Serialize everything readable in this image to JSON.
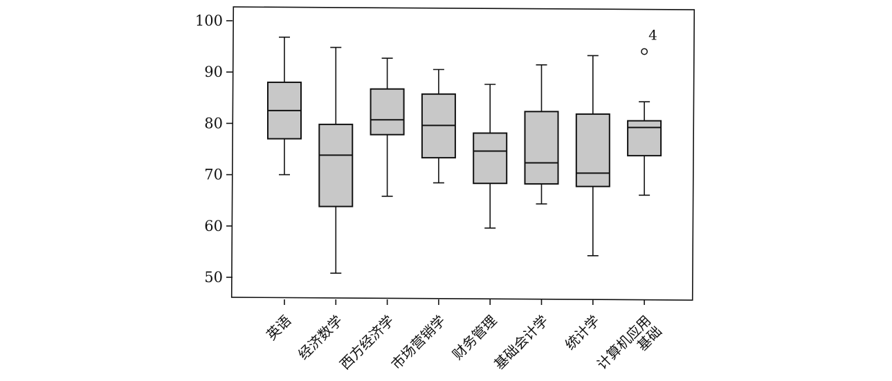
{
  "chart_data": {
    "type": "boxplot",
    "ylim": [
      47,
      102.5
    ],
    "yticks": [
      50,
      60,
      70,
      80,
      90,
      100
    ],
    "grid": false,
    "categories": [
      [
        "英语"
      ],
      [
        "经济数学"
      ],
      [
        "西方经济学"
      ],
      [
        "市场营销学"
      ],
      [
        "财务管理"
      ],
      [
        "基础会计学"
      ],
      [
        "统计学"
      ],
      [
        "计算机应用",
        "基础"
      ]
    ],
    "boxes": [
      {
        "whisker_low": 70.0,
        "q1": 77.0,
        "median": 82.5,
        "q3": 88.0,
        "whisker_high": 96.8
      },
      {
        "whisker_low": 50.8,
        "q1": 63.8,
        "median": 73.8,
        "q3": 79.8,
        "whisker_high": 94.8
      },
      {
        "whisker_low": 65.8,
        "q1": 77.8,
        "median": 80.7,
        "q3": 86.7,
        "whisker_high": 92.7
      },
      {
        "whisker_low": 68.4,
        "q1": 73.3,
        "median": 79.6,
        "q3": 85.7,
        "whisker_high": 90.5
      },
      {
        "whisker_low": 59.6,
        "q1": 68.3,
        "median": 74.6,
        "q3": 78.1,
        "whisker_high": 87.6
      },
      {
        "whisker_low": 64.3,
        "q1": 68.2,
        "median": 72.3,
        "q3": 82.3,
        "whisker_high": 91.4
      },
      {
        "whisker_low": 54.2,
        "q1": 67.7,
        "median": 70.3,
        "q3": 81.8,
        "whisker_high": 93.2
      },
      {
        "whisker_low": 66.0,
        "q1": 73.7,
        "median": 79.2,
        "q3": 80.5,
        "whisker_high": 84.2
      }
    ],
    "outliers": [
      {
        "category_index": 7,
        "value": 94.0,
        "label": "4"
      }
    ],
    "colors": {
      "box_fill": "#c8c8c8",
      "stroke": "#111111"
    }
  }
}
